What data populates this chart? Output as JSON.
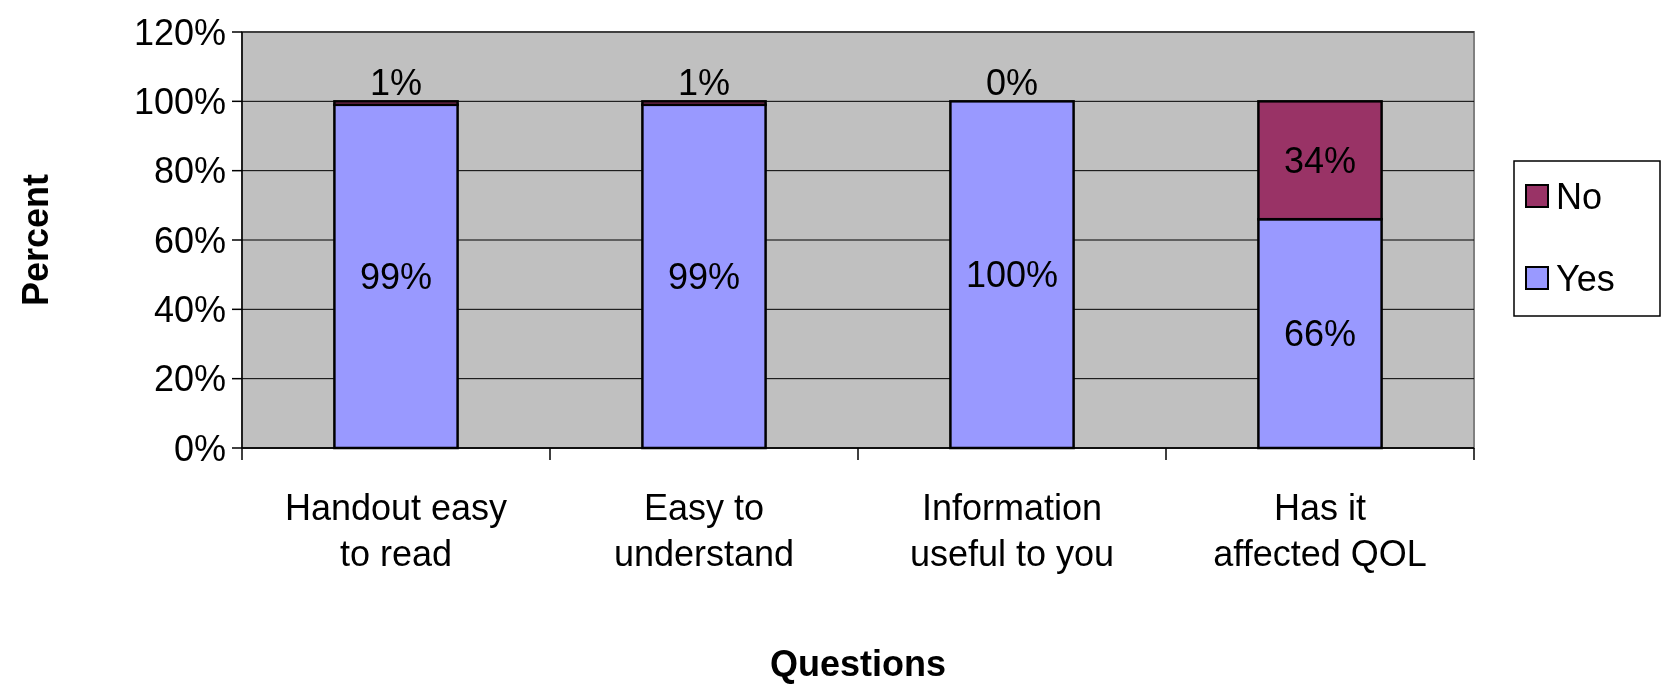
{
  "chart_data": {
    "type": "bar",
    "stacked": true,
    "xlabel": "Questions",
    "ylabel": "Percent",
    "categories": [
      "Handout easy to read",
      "Easy to understand",
      "Information useful to you",
      "Has it affected QOL"
    ],
    "series": [
      {
        "name": "Yes",
        "color": "#9999ff",
        "values": [
          99,
          99,
          100,
          66
        ],
        "value_labels": [
          "99%",
          "99%",
          "100%",
          "66%"
        ]
      },
      {
        "name": "No",
        "color": "#993366",
        "values": [
          1,
          1,
          0,
          34
        ],
        "value_labels": [
          "1%",
          "1%",
          "0%",
          "34%"
        ]
      }
    ],
    "ylim": [
      0,
      120
    ],
    "yticks": [
      {
        "value": 0,
        "label": "0%"
      },
      {
        "value": 20,
        "label": "20%"
      },
      {
        "value": 40,
        "label": "40%"
      },
      {
        "value": 60,
        "label": "60%"
      },
      {
        "value": 80,
        "label": "80%"
      },
      {
        "value": 100,
        "label": "100%"
      },
      {
        "value": 120,
        "label": "120%"
      }
    ],
    "grid": "y",
    "legend": "right"
  }
}
